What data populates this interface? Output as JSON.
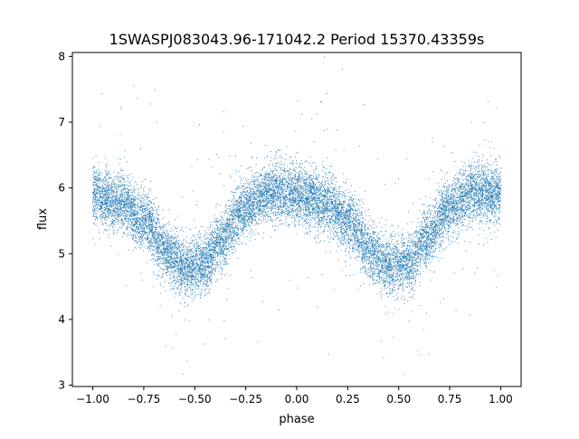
{
  "chart_data": {
    "type": "scatter",
    "title": "1SWASPJ083043.96-171042.2 Period 15370.43359s",
    "xlabel": "phase",
    "ylabel": "flux",
    "xlim": [
      -1.1,
      1.1
    ],
    "ylim": [
      2.98,
      8.06
    ],
    "x_ticks": [
      -1.0,
      -0.75,
      -0.5,
      -0.25,
      0.0,
      0.25,
      0.5,
      0.75,
      1.0
    ],
    "x_tick_labels": [
      "−1.00",
      "−0.75",
      "−0.50",
      "−0.25",
      "0.00",
      "0.25",
      "0.50",
      "0.75",
      "1.00"
    ],
    "y_ticks": [
      3,
      4,
      5,
      6,
      7,
      8
    ],
    "y_tick_labels": [
      "3",
      "4",
      "5",
      "6",
      "7",
      "8"
    ],
    "grid": false,
    "legend": "none",
    "series": [
      {
        "color": "#1f77b4",
        "x_range": [
          -1.0,
          1.0
        ],
        "profile_phase": [
          -1.0,
          -0.875,
          -0.75,
          -0.625,
          -0.55,
          -0.45,
          -0.375,
          -0.25,
          -0.125,
          0.0,
          0.125,
          0.25,
          0.375,
          0.45,
          0.55,
          0.625,
          0.75,
          0.875,
          1.0
        ],
        "profile_flux": [
          5.9,
          5.8,
          5.5,
          5.0,
          4.8,
          4.85,
          5.2,
          5.7,
          5.95,
          5.9,
          5.8,
          5.5,
          5.0,
          4.8,
          4.85,
          5.2,
          5.7,
          5.95,
          5.9
        ],
        "scatter_sd": 0.22,
        "point_count": 14000
      }
    ]
  }
}
